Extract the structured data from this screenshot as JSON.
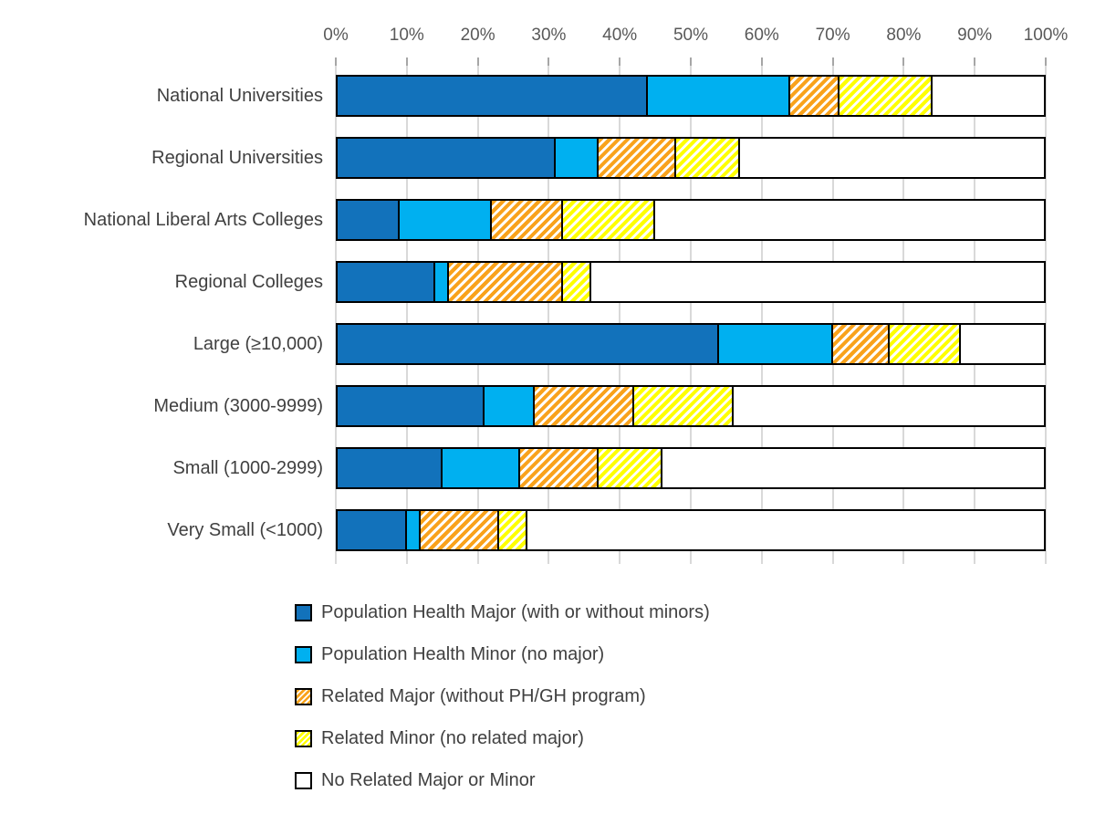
{
  "chart_data": {
    "type": "bar",
    "stacked": true,
    "orientation": "horizontal",
    "title": "",
    "xlabel": "",
    "ylabel": "",
    "xlim": [
      0,
      100
    ],
    "grid": true,
    "legend_position": "bottom",
    "x_ticks": [
      "0%",
      "10%",
      "20%",
      "30%",
      "40%",
      "50%",
      "60%",
      "70%",
      "80%",
      "90%",
      "100%"
    ],
    "categories": [
      "National Universities",
      "Regional Universities",
      "National Liberal Arts Colleges",
      "Regional Colleges",
      "Large (≥10,000)",
      "Medium (3000-9999)",
      "Small (1000-2999)",
      "Very Small (<1000)"
    ],
    "series": [
      {
        "name": "Population Health Major (with or without minors)",
        "color": "#1272BB",
        "pattern": "solid",
        "values": [
          44,
          31,
          9,
          14,
          54,
          21,
          15,
          10
        ]
      },
      {
        "name": "Population Health Minor (no major)",
        "color": "#00B0F0",
        "pattern": "solid",
        "values": [
          20,
          6,
          13,
          2,
          16,
          7,
          11,
          2
        ]
      },
      {
        "name": "Related Major (without PH/GH program)",
        "color": "#F9A21B",
        "pattern": "diagonal-hatch",
        "values": [
          7,
          11,
          10,
          16,
          8,
          14,
          11,
          11
        ]
      },
      {
        "name": "Related Minor (no related major)",
        "color": "#FFFF00",
        "pattern": "diagonal-hatch",
        "values": [
          13,
          9,
          13,
          4,
          10,
          14,
          9,
          4
        ]
      },
      {
        "name": "No Related Major or Minor",
        "color": "#FFFFFF",
        "pattern": "solid",
        "values": [
          16,
          43,
          55,
          64,
          12,
          44,
          54,
          73
        ]
      }
    ]
  },
  "colors": {
    "grid": "#D9D9D9",
    "tick_mark": "#A6A6A6",
    "axis_text": "#595959",
    "label_text": "#404040",
    "bar_border": "#000000",
    "background": "#FFFFFF"
  }
}
